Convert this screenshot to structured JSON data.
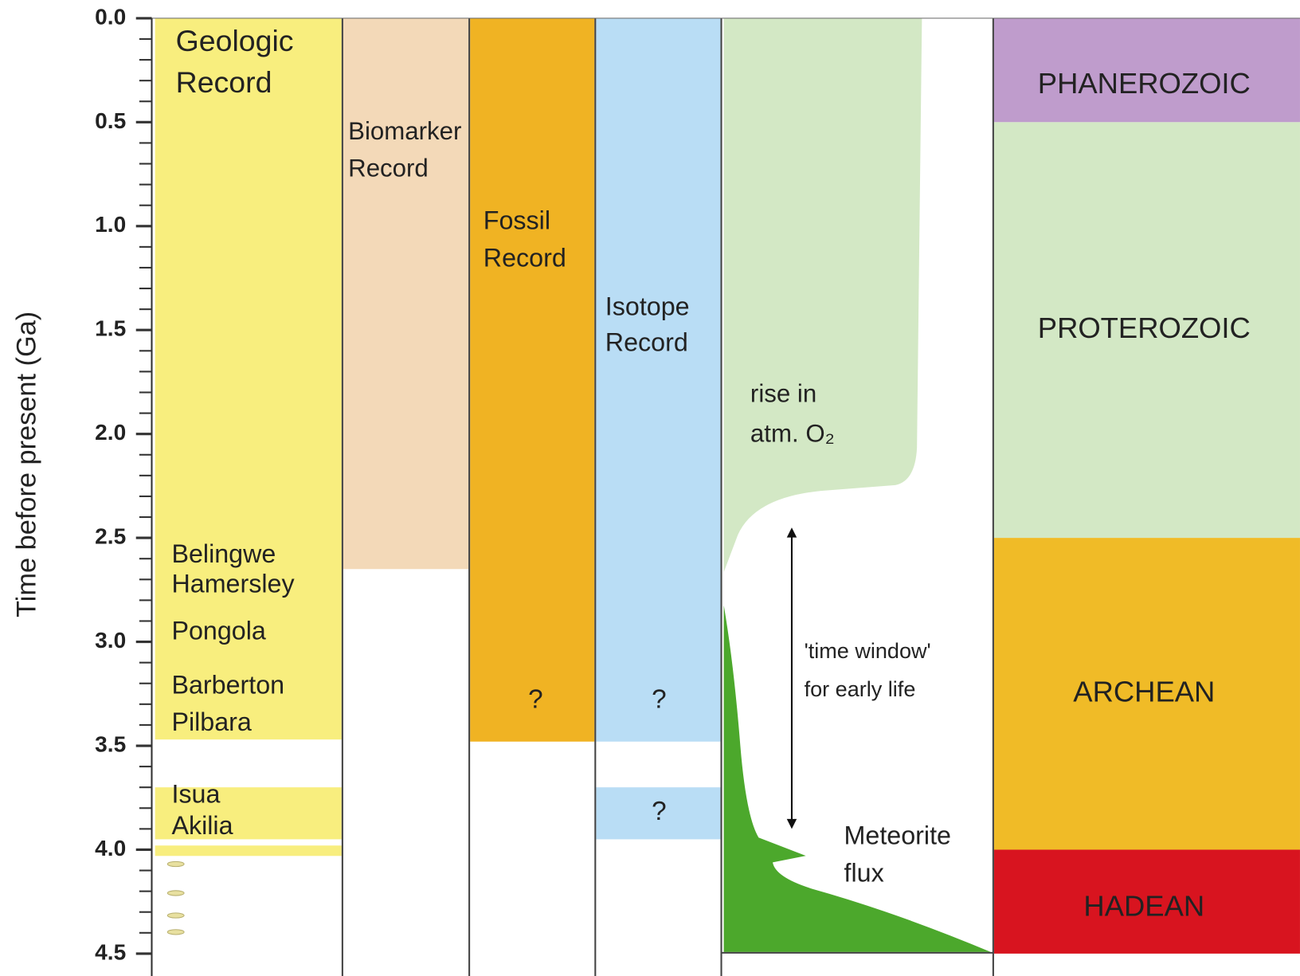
{
  "axis": {
    "label": "Time before present (Ga)",
    "ylim": [
      0,
      4.5
    ],
    "ticks": [
      {
        "value": 0,
        "label": "0.0"
      },
      0.5,
      {
        "value": 1,
        "label": "1.0"
      },
      1.5,
      {
        "value": 2,
        "label": "2.0"
      },
      2.5,
      {
        "value": 3,
        "label": "3.0"
      },
      3.5,
      {
        "value": 4,
        "label": "4.0"
      },
      4.5
    ],
    "minor_ticks": [
      0.1,
      0.2,
      0.3,
      0.4,
      0.6,
      0.7,
      0.8,
      0.9,
      1.1,
      1.2,
      1.3,
      1.4,
      1.6,
      1.7,
      1.8,
      1.9,
      2.1,
      2.2,
      2.3,
      2.4,
      2.6,
      2.7,
      2.8,
      2.9,
      3.1,
      3.2,
      3.3,
      3.4,
      3.6,
      3.7,
      3.8,
      3.9,
      4.1,
      4.2,
      4.3,
      4.4
    ]
  },
  "columns": [
    {
      "label": [
        "Geologic",
        "Record"
      ],
      "color": "#f8ee7e",
      "ranges": [
        [
          0,
          3.47
        ],
        [
          3.7,
          3.95
        ],
        [
          3.98,
          4.03
        ]
      ],
      "sites": [
        "Belingwe",
        "Hamersley",
        "Pongola",
        "Barberton",
        "Pilbara",
        "Isua",
        "Akilia"
      ]
    },
    {
      "label": [
        "Biomarker",
        "Record"
      ],
      "color": "#f3d9b8",
      "ranges": [
        [
          0,
          2.65
        ]
      ],
      "marks": []
    },
    {
      "label": [
        "Fossil",
        "Record"
      ],
      "color": "#f0b323",
      "ranges": [
        [
          0,
          3.48
        ]
      ],
      "marks": [
        "?"
      ]
    },
    {
      "label": [
        "Isotope",
        "Record"
      ],
      "color": "#b9ddf5",
      "ranges": [
        [
          0,
          3.48
        ],
        [
          3.7,
          3.95
        ]
      ],
      "marks": [
        "?",
        "?"
      ]
    }
  ],
  "oxygen": {
    "label": [
      "rise in",
      "atm. O₂"
    ],
    "color": "#d3e8c5"
  },
  "time_window": {
    "label": [
      "'time window'",
      "for early life"
    ],
    "range": [
      2.45,
      3.9
    ]
  },
  "meteorite": {
    "label": [
      "Meteorite",
      "flux"
    ],
    "color": "#4ca82c"
  },
  "eons": [
    {
      "name": "PHANEROZOIC",
      "range": [
        0,
        0.5
      ],
      "color": "#bf9ccc"
    },
    {
      "name": "PROTEROZOIC",
      "range": [
        0.5,
        2.5
      ],
      "color": "#d3e8c5"
    },
    {
      "name": "ARCHEAN",
      "range": [
        2.5,
        4.0
      ],
      "color": "#f0bb27"
    },
    {
      "name": "HADEAN",
      "range": [
        4.0,
        4.5
      ],
      "color": "#d8141f"
    }
  ]
}
